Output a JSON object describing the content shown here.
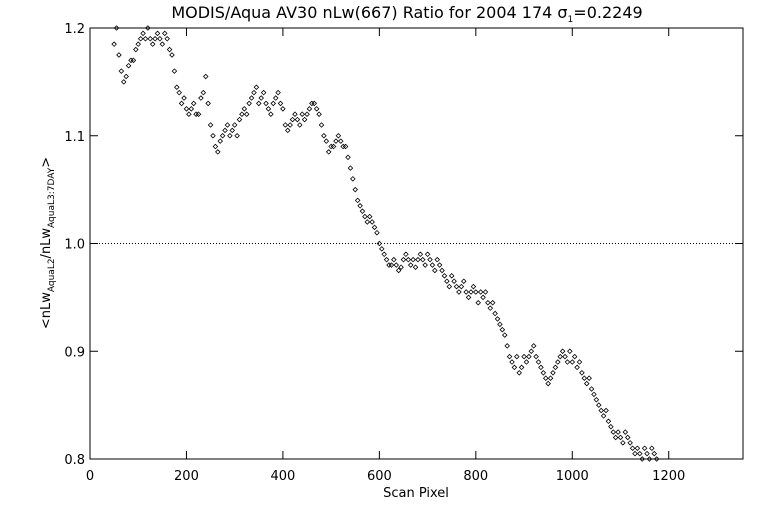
{
  "chart_data": {
    "type": "scatter",
    "title": "MODIS/Aqua AV30 nLw(667) Ratio for 2004 174 σ1=0.2249",
    "title_parts": {
      "prefix": "MODIS/Aqua AV30 nLw(667) Ratio for 2004 174 ",
      "sigma": "σ",
      "sigma_sub": "1",
      "suffix": "=0.2249"
    },
    "xlabel": "Scan Pixel",
    "ylabel_parts": {
      "open": "<nLw",
      "sub1": "AquaL2",
      "mid": "/nLw",
      "sub2": "AquaL3:7DAY",
      "close": ">"
    },
    "xlim": [
      0,
      1354
    ],
    "ylim": [
      0.8,
      1.2
    ],
    "x_ticks": [
      0,
      200,
      400,
      600,
      800,
      1000,
      1200
    ],
    "x_tick_labels": [
      "0",
      "200",
      "400",
      "600",
      "800",
      "1000",
      "1200"
    ],
    "y_ticks": [
      0.8,
      0.9,
      1.0,
      1.1,
      1.2
    ],
    "y_tick_labels": [
      "0.8",
      "0.9",
      "1.0",
      "1.1",
      "1.2"
    ],
    "reference_line": {
      "y": 1.0,
      "style": "dotted"
    },
    "marker": "diamond",
    "color": "#000000",
    "series": [
      {
        "values": [
          [
            50,
            1.185
          ],
          [
            55,
            1.2
          ],
          [
            60,
            1.175
          ],
          [
            65,
            1.16
          ],
          [
            70,
            1.15
          ],
          [
            75,
            1.155
          ],
          [
            80,
            1.165
          ],
          [
            85,
            1.17
          ],
          [
            90,
            1.17
          ],
          [
            95,
            1.18
          ],
          [
            100,
            1.185
          ],
          [
            105,
            1.19
          ],
          [
            110,
            1.195
          ],
          [
            115,
            1.19
          ],
          [
            120,
            1.2
          ],
          [
            125,
            1.19
          ],
          [
            130,
            1.185
          ],
          [
            135,
            1.19
          ],
          [
            140,
            1.195
          ],
          [
            145,
            1.19
          ],
          [
            150,
            1.185
          ],
          [
            155,
            1.195
          ],
          [
            160,
            1.19
          ],
          [
            165,
            1.18
          ],
          [
            170,
            1.175
          ],
          [
            175,
            1.16
          ],
          [
            180,
            1.145
          ],
          [
            185,
            1.14
          ],
          [
            190,
            1.13
          ],
          [
            195,
            1.135
          ],
          [
            200,
            1.125
          ],
          [
            205,
            1.12
          ],
          [
            210,
            1.125
          ],
          [
            215,
            1.13
          ],
          [
            220,
            1.12
          ],
          [
            225,
            1.12
          ],
          [
            230,
            1.135
          ],
          [
            235,
            1.14
          ],
          [
            240,
            1.155
          ],
          [
            245,
            1.13
          ],
          [
            250,
            1.11
          ],
          [
            255,
            1.1
          ],
          [
            260,
            1.09
          ],
          [
            265,
            1.085
          ],
          [
            270,
            1.095
          ],
          [
            275,
            1.1
          ],
          [
            280,
            1.105
          ],
          [
            285,
            1.11
          ],
          [
            290,
            1.1
          ],
          [
            295,
            1.105
          ],
          [
            300,
            1.11
          ],
          [
            305,
            1.1
          ],
          [
            310,
            1.115
          ],
          [
            315,
            1.12
          ],
          [
            320,
            1.125
          ],
          [
            325,
            1.12
          ],
          [
            330,
            1.13
          ],
          [
            335,
            1.135
          ],
          [
            340,
            1.14
          ],
          [
            345,
            1.145
          ],
          [
            350,
            1.13
          ],
          [
            355,
            1.135
          ],
          [
            360,
            1.14
          ],
          [
            365,
            1.13
          ],
          [
            370,
            1.125
          ],
          [
            375,
            1.12
          ],
          [
            380,
            1.13
          ],
          [
            385,
            1.135
          ],
          [
            390,
            1.14
          ],
          [
            395,
            1.13
          ],
          [
            400,
            1.125
          ],
          [
            405,
            1.11
          ],
          [
            410,
            1.105
          ],
          [
            415,
            1.11
          ],
          [
            420,
            1.115
          ],
          [
            425,
            1.12
          ],
          [
            430,
            1.115
          ],
          [
            435,
            1.11
          ],
          [
            440,
            1.12
          ],
          [
            445,
            1.115
          ],
          [
            450,
            1.12
          ],
          [
            455,
            1.125
          ],
          [
            460,
            1.13
          ],
          [
            465,
            1.13
          ],
          [
            470,
            1.125
          ],
          [
            475,
            1.12
          ],
          [
            480,
            1.11
          ],
          [
            485,
            1.1
          ],
          [
            490,
            1.095
          ],
          [
            495,
            1.085
          ],
          [
            500,
            1.09
          ],
          [
            505,
            1.09
          ],
          [
            510,
            1.095
          ],
          [
            515,
            1.1
          ],
          [
            520,
            1.095
          ],
          [
            525,
            1.09
          ],
          [
            530,
            1.09
          ],
          [
            535,
            1.08
          ],
          [
            540,
            1.07
          ],
          [
            545,
            1.06
          ],
          [
            550,
            1.05
          ],
          [
            555,
            1.04
          ],
          [
            560,
            1.035
          ],
          [
            565,
            1.03
          ],
          [
            570,
            1.025
          ],
          [
            575,
            1.02
          ],
          [
            580,
            1.025
          ],
          [
            585,
            1.02
          ],
          [
            590,
            1.015
          ],
          [
            595,
            1.01
          ],
          [
            600,
            1.0
          ],
          [
            605,
            0.995
          ],
          [
            610,
            0.99
          ],
          [
            615,
            0.985
          ],
          [
            620,
            0.98
          ],
          [
            625,
            0.98
          ],
          [
            630,
            0.985
          ],
          [
            635,
            0.98
          ],
          [
            640,
            0.975
          ],
          [
            645,
            0.978
          ],
          [
            650,
            0.985
          ],
          [
            655,
            0.99
          ],
          [
            660,
            0.985
          ],
          [
            665,
            0.98
          ],
          [
            670,
            0.985
          ],
          [
            675,
            0.978
          ],
          [
            680,
            0.985
          ],
          [
            685,
            0.99
          ],
          [
            690,
            0.985
          ],
          [
            695,
            0.98
          ],
          [
            700,
            0.99
          ],
          [
            705,
            0.985
          ],
          [
            710,
            0.98
          ],
          [
            715,
            0.975
          ],
          [
            720,
            0.985
          ],
          [
            725,
            0.98
          ],
          [
            730,
            0.975
          ],
          [
            735,
            0.97
          ],
          [
            740,
            0.965
          ],
          [
            745,
            0.96
          ],
          [
            750,
            0.97
          ],
          [
            755,
            0.965
          ],
          [
            760,
            0.96
          ],
          [
            765,
            0.955
          ],
          [
            770,
            0.96
          ],
          [
            775,
            0.965
          ],
          [
            780,
            0.955
          ],
          [
            785,
            0.95
          ],
          [
            790,
            0.955
          ],
          [
            795,
            0.96
          ],
          [
            800,
            0.955
          ],
          [
            805,
            0.945
          ],
          [
            810,
            0.955
          ],
          [
            815,
            0.95
          ],
          [
            820,
            0.955
          ],
          [
            825,
            0.945
          ],
          [
            830,
            0.94
          ],
          [
            835,
            0.945
          ],
          [
            840,
            0.935
          ],
          [
            845,
            0.93
          ],
          [
            850,
            0.925
          ],
          [
            855,
            0.92
          ],
          [
            860,
            0.915
          ],
          [
            865,
            0.905
          ],
          [
            870,
            0.895
          ],
          [
            875,
            0.89
          ],
          [
            880,
            0.885
          ],
          [
            885,
            0.895
          ],
          [
            890,
            0.88
          ],
          [
            895,
            0.885
          ],
          [
            900,
            0.895
          ],
          [
            905,
            0.89
          ],
          [
            910,
            0.895
          ],
          [
            915,
            0.9
          ],
          [
            920,
            0.905
          ],
          [
            925,
            0.895
          ],
          [
            930,
            0.89
          ],
          [
            935,
            0.885
          ],
          [
            940,
            0.88
          ],
          [
            945,
            0.875
          ],
          [
            950,
            0.87
          ],
          [
            955,
            0.875
          ],
          [
            960,
            0.88
          ],
          [
            965,
            0.885
          ],
          [
            970,
            0.89
          ],
          [
            975,
            0.895
          ],
          [
            980,
            0.9
          ],
          [
            985,
            0.895
          ],
          [
            990,
            0.89
          ],
          [
            995,
            0.9
          ],
          [
            1000,
            0.89
          ],
          [
            1005,
            0.895
          ],
          [
            1010,
            0.885
          ],
          [
            1015,
            0.89
          ],
          [
            1020,
            0.88
          ],
          [
            1025,
            0.875
          ],
          [
            1030,
            0.87
          ],
          [
            1035,
            0.875
          ],
          [
            1040,
            0.865
          ],
          [
            1045,
            0.86
          ],
          [
            1050,
            0.855
          ],
          [
            1055,
            0.85
          ],
          [
            1060,
            0.845
          ],
          [
            1065,
            0.84
          ],
          [
            1070,
            0.845
          ],
          [
            1075,
            0.835
          ],
          [
            1080,
            0.83
          ],
          [
            1085,
            0.825
          ],
          [
            1090,
            0.82
          ],
          [
            1095,
            0.825
          ],
          [
            1100,
            0.82
          ],
          [
            1105,
            0.815
          ],
          [
            1110,
            0.825
          ],
          [
            1115,
            0.82
          ],
          [
            1120,
            0.815
          ],
          [
            1125,
            0.81
          ],
          [
            1130,
            0.805
          ],
          [
            1135,
            0.81
          ],
          [
            1140,
            0.805
          ],
          [
            1145,
            0.8
          ],
          [
            1150,
            0.81
          ],
          [
            1155,
            0.805
          ],
          [
            1160,
            0.8
          ],
          [
            1165,
            0.81
          ],
          [
            1170,
            0.805
          ],
          [
            1175,
            0.8
          ]
        ]
      }
    ]
  }
}
